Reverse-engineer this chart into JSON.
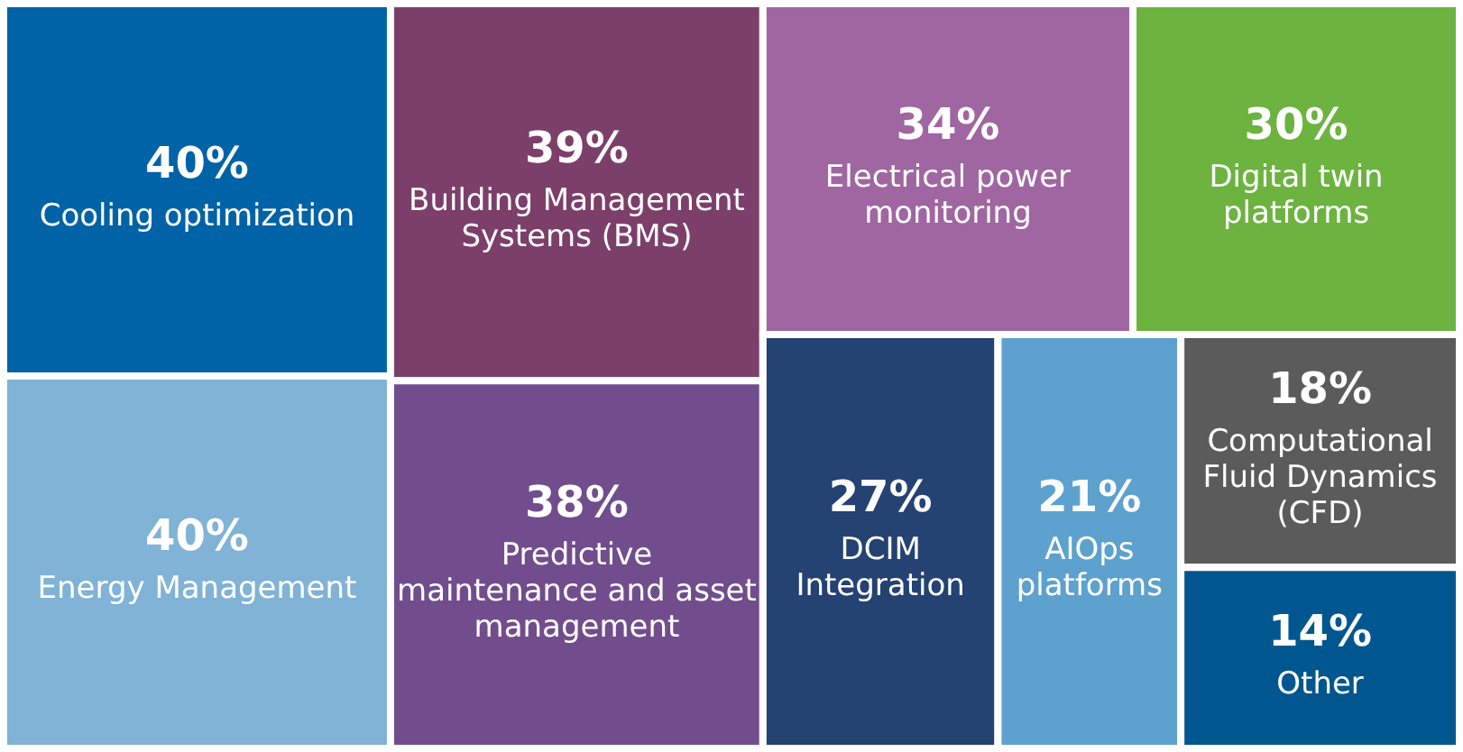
{
  "chart_data": {
    "type": "other",
    "categories": [
      "Cooling optimization",
      "Energy Management",
      "Building Management Systems (BMS)",
      "Predictive maintenance and asset management",
      "Electrical power monitoring",
      "Digital twin platforms",
      "DCIM Integration",
      "AIOps platforms",
      "Computational Fluid Dynamics (CFD)",
      "Other"
    ],
    "values": [
      40,
      40,
      39,
      38,
      34,
      30,
      27,
      21,
      18,
      14
    ],
    "value_labels": [
      "40%",
      "40%",
      "39%",
      "38%",
      "34%",
      "30%",
      "27%",
      "21%",
      "18%",
      "14%"
    ],
    "colors": [
      "#0062a7",
      "#80b3d6",
      "#7c3f6a",
      "#724d8d",
      "#a066a1",
      "#6cb33f",
      "#244272",
      "#5da1cf",
      "#5b5b5b",
      "#00578f"
    ]
  }
}
